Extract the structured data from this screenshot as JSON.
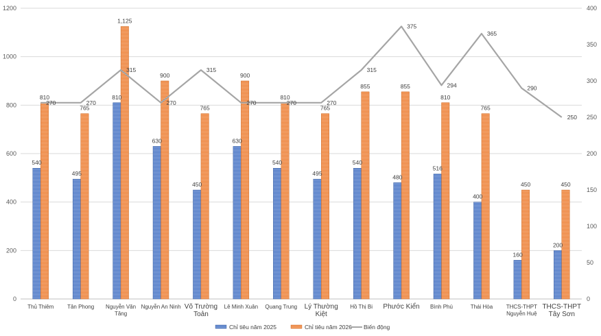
{
  "chart_data": {
    "type": "bar",
    "categories": [
      [
        "Thủ Thiêm"
      ],
      [
        "Tân Phong"
      ],
      [
        "Nguyễn Văn",
        "Tăng"
      ],
      [
        "Nguyễn An Ninh"
      ],
      [
        "Võ Trường",
        "Toản"
      ],
      [
        "Lê Minh Xuân"
      ],
      [
        "Quang Trung"
      ],
      [
        "Lý Thường",
        "Kiệt"
      ],
      [
        "Hồ Thị Bi"
      ],
      [
        "Phước Kiển"
      ],
      [
        "Bình Phú"
      ],
      [
        "Thái Hòa"
      ],
      [
        "THCS-THPT",
        "Nguyễn Huệ"
      ],
      [
        "THCS-THPT",
        "Tây Sơn"
      ]
    ],
    "category_large": [
      false,
      false,
      false,
      false,
      true,
      false,
      false,
      true,
      false,
      true,
      false,
      false,
      false,
      true
    ],
    "series": [
      {
        "name": "Chỉ tiêu năm 2025",
        "type": "bar",
        "axis": "left",
        "color": "#4472C4",
        "values": [
          540,
          495,
          810,
          630,
          450,
          630,
          540,
          495,
          540,
          480,
          516,
          400,
          160,
          200
        ]
      },
      {
        "name": "Chỉ tiêu năm 2026",
        "type": "bar",
        "axis": "left",
        "color": "#ED7D31",
        "values": [
          810,
          765,
          1125,
          900,
          765,
          900,
          810,
          765,
          855,
          855,
          810,
          765,
          450,
          450
        ]
      },
      {
        "name": "Biến động",
        "type": "line",
        "axis": "right",
        "color": "#A5A5A5",
        "values": [
          270,
          270,
          315,
          270,
          315,
          270,
          270,
          270,
          315,
          375,
          294,
          365,
          290,
          250
        ]
      }
    ],
    "data_labels": {
      "series0": [
        "540",
        "495",
        "810",
        "630",
        "450",
        "630",
        "540",
        "495",
        "540",
        "480",
        "516",
        "400",
        "160",
        "200"
      ],
      "series1": [
        "810",
        "765",
        "1,125",
        "900",
        "765",
        "900",
        "810",
        "765",
        "855",
        "855",
        "810",
        "765",
        "450",
        "450"
      ],
      "series2": [
        "270",
        "270",
        "315",
        "270",
        "315",
        "270",
        "270",
        "270",
        "315",
        "375",
        "294",
        "365",
        "290",
        "250"
      ]
    },
    "left_axis": {
      "min": 0,
      "max": 1200,
      "step": 200,
      "ticks": [
        "0",
        "200",
        "400",
        "600",
        "800",
        "1000",
        "1200"
      ]
    },
    "right_axis": {
      "min": 0,
      "max": 400,
      "step": 50,
      "ticks": [
        "0",
        "50",
        "100",
        "150",
        "200",
        "250",
        "300",
        "350",
        "400"
      ]
    },
    "grid": true,
    "legend_position": "bottom"
  }
}
